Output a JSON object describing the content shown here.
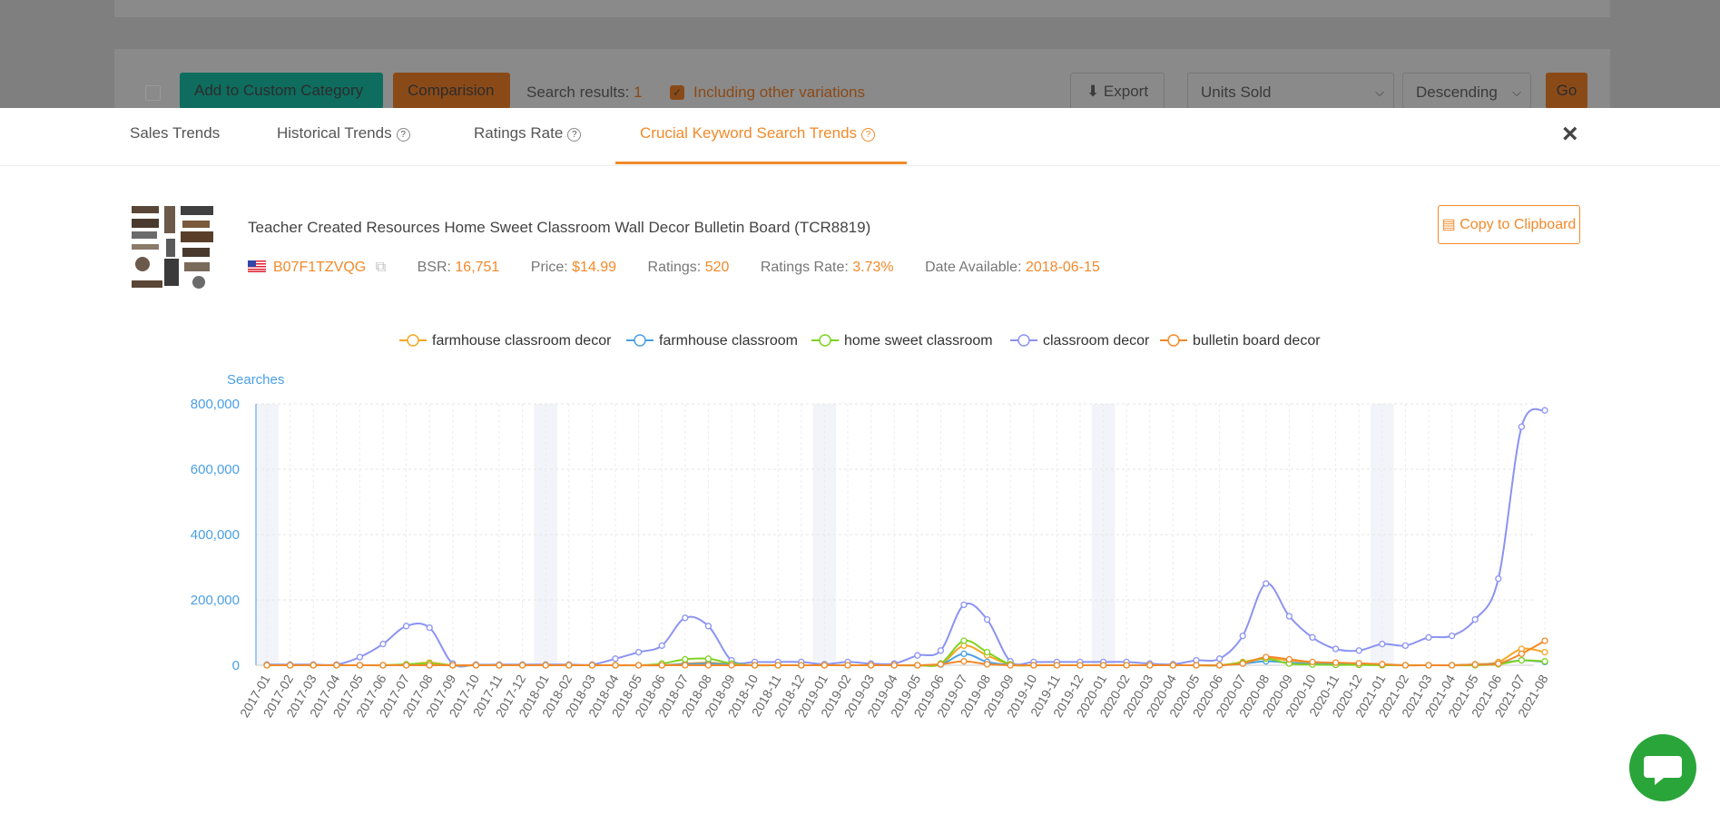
{
  "background": {
    "add_custom_category": "Add to Custom Category",
    "comparison": "Comparision",
    "search_results_label": "Search results:",
    "search_results_count": "1",
    "including_other_variations": "Including other variations",
    "export": "Export",
    "sort_field": "Units Sold",
    "sort_order": "Descending",
    "go": "Go"
  },
  "tabs": [
    {
      "label": "Sales Trends",
      "help": false
    },
    {
      "label": "Historical Trends",
      "help": true
    },
    {
      "label": "Ratings Rate",
      "help": true
    },
    {
      "label": "Crucial Keyword Search Trends",
      "help": true,
      "active": true
    }
  ],
  "help_glyph": "?",
  "close_glyph": "×",
  "product": {
    "title": "Teacher Created Resources Home Sweet Classroom Wall Decor Bulletin Board (TCR8819)",
    "asin": "B07F1TZVQG",
    "bsr_label": "BSR:",
    "bsr": "16,751",
    "price_label": "Price:",
    "price": "$14.99",
    "ratings_label": "Ratings:",
    "ratings": "520",
    "ratings_rate_label": "Ratings Rate:",
    "ratings_rate": "3.73%",
    "date_label": "Date Available:",
    "date": "2018-06-15",
    "copy_button": "Copy to Clipboard"
  },
  "colors": {
    "accent": "#f28a2a",
    "axis_blue": "#4a9fe6"
  },
  "chart_data": {
    "type": "line",
    "ylabel": "Searches",
    "ylim": [
      0,
      800000
    ],
    "yticks": [
      0,
      200000,
      400000,
      600000,
      800000
    ],
    "ytick_labels": [
      "0",
      "200,000",
      "400,000",
      "600,000",
      "800,000"
    ],
    "grid": true,
    "legend_position": "top",
    "categories": [
      "2017-01",
      "2017-02",
      "2017-03",
      "2017-04",
      "2017-05",
      "2017-06",
      "2017-07",
      "2017-08",
      "2017-09",
      "2017-10",
      "2017-11",
      "2017-12",
      "2018-01",
      "2018-02",
      "2018-03",
      "2018-04",
      "2018-05",
      "2018-06",
      "2018-07",
      "2018-08",
      "2018-09",
      "2018-10",
      "2018-11",
      "2018-12",
      "2019-01",
      "2019-02",
      "2019-03",
      "2019-04",
      "2019-05",
      "2019-06",
      "2019-07",
      "2019-08",
      "2019-09",
      "2019-10",
      "2019-11",
      "2019-12",
      "2020-01",
      "2020-02",
      "2020-03",
      "2020-04",
      "2020-05",
      "2020-06",
      "2020-07",
      "2020-08",
      "2020-09",
      "2020-10",
      "2020-11",
      "2020-12",
      "2021-01",
      "2021-02",
      "2021-03",
      "2021-04",
      "2021-05",
      "2021-06",
      "2021-07",
      "2021-08"
    ],
    "series": [
      {
        "name": "farmhouse classroom decor",
        "color": "#f5a623",
        "values": [
          0,
          0,
          0,
          0,
          0,
          0,
          2000,
          8000,
          0,
          0,
          0,
          0,
          0,
          0,
          0,
          0,
          0,
          0,
          5000,
          8000,
          3000,
          0,
          0,
          0,
          0,
          0,
          0,
          0,
          0,
          3000,
          60000,
          30000,
          2000,
          0,
          0,
          0,
          0,
          0,
          0,
          0,
          0,
          0,
          10000,
          22000,
          15000,
          8000,
          6000,
          5000,
          3000,
          0,
          0,
          0,
          3000,
          10000,
          50000,
          40000
        ]
      },
      {
        "name": "farmhouse classroom",
        "color": "#4a9fe6",
        "values": [
          0,
          0,
          0,
          0,
          0,
          0,
          0,
          0,
          0,
          0,
          0,
          0,
          0,
          0,
          0,
          0,
          0,
          0,
          3000,
          5000,
          2000,
          0,
          0,
          0,
          0,
          0,
          0,
          0,
          0,
          2000,
          35000,
          10000,
          1000,
          0,
          0,
          0,
          0,
          0,
          0,
          0,
          0,
          0,
          5000,
          12000,
          8000,
          4000,
          3000,
          2000,
          1000,
          0,
          0,
          0,
          2000,
          5000,
          15000,
          10000
        ]
      },
      {
        "name": "home sweet classroom",
        "color": "#7ed321",
        "values": [
          0,
          0,
          0,
          0,
          0,
          0,
          3000,
          5000,
          0,
          0,
          0,
          0,
          0,
          0,
          0,
          0,
          0,
          5000,
          18000,
          20000,
          5000,
          0,
          0,
          0,
          0,
          0,
          0,
          0,
          0,
          5000,
          75000,
          40000,
          3000,
          0,
          0,
          0,
          0,
          0,
          0,
          0,
          0,
          0,
          8000,
          20000,
          5000,
          2000,
          1000,
          1000,
          0,
          0,
          0,
          0,
          0,
          3000,
          15000,
          12000
        ]
      },
      {
        "name": "classroom decor",
        "color": "#8b93f2",
        "values": [
          2000,
          2000,
          2000,
          2000,
          25000,
          65000,
          120000,
          115000,
          5000,
          2000,
          2000,
          2000,
          2000,
          2000,
          2000,
          20000,
          40000,
          60000,
          145000,
          120000,
          15000,
          10000,
          10000,
          10000,
          3000,
          10000,
          5000,
          5000,
          30000,
          45000,
          185000,
          140000,
          12000,
          10000,
          10000,
          10000,
          10000,
          10000,
          5000,
          3000,
          15000,
          20000,
          90000,
          250000,
          150000,
          85000,
          50000,
          45000,
          65000,
          60000,
          85000,
          90000,
          140000,
          265000,
          730000,
          780000
        ]
      },
      {
        "name": "bulletin board decor",
        "color": "#f28a2a",
        "values": [
          0,
          0,
          0,
          0,
          0,
          0,
          0,
          0,
          0,
          0,
          0,
          0,
          0,
          0,
          0,
          0,
          0,
          0,
          0,
          0,
          0,
          0,
          0,
          0,
          0,
          0,
          0,
          0,
          0,
          3000,
          12000,
          3000,
          0,
          0,
          0,
          0,
          0,
          0,
          0,
          0,
          0,
          0,
          5000,
          25000,
          18000,
          10000,
          8000,
          6000,
          3000,
          0,
          0,
          0,
          2000,
          5000,
          35000,
          75000
        ]
      }
    ]
  }
}
